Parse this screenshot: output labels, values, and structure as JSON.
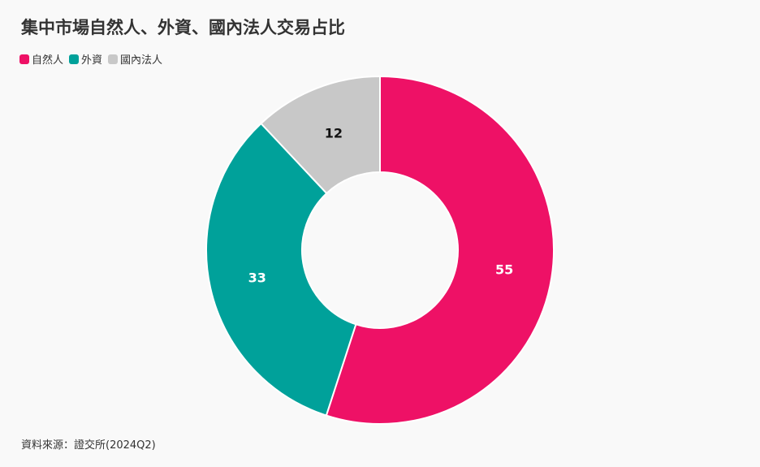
{
  "chart_data": {
    "type": "pie",
    "title": "集中市場自然人、外資、國內法人交易占比",
    "source": "資料來源：證交所(2024Q2)",
    "legend_position": "top-left",
    "donut": true,
    "categories": [
      "自然人",
      "外資",
      "國內法人"
    ],
    "values": [
      55,
      33,
      12
    ],
    "colors": [
      "#ee1166",
      "#00a19a",
      "#c8c8c8"
    ],
    "label_colors": [
      "#ffffff",
      "#ffffff",
      "#111111"
    ]
  }
}
